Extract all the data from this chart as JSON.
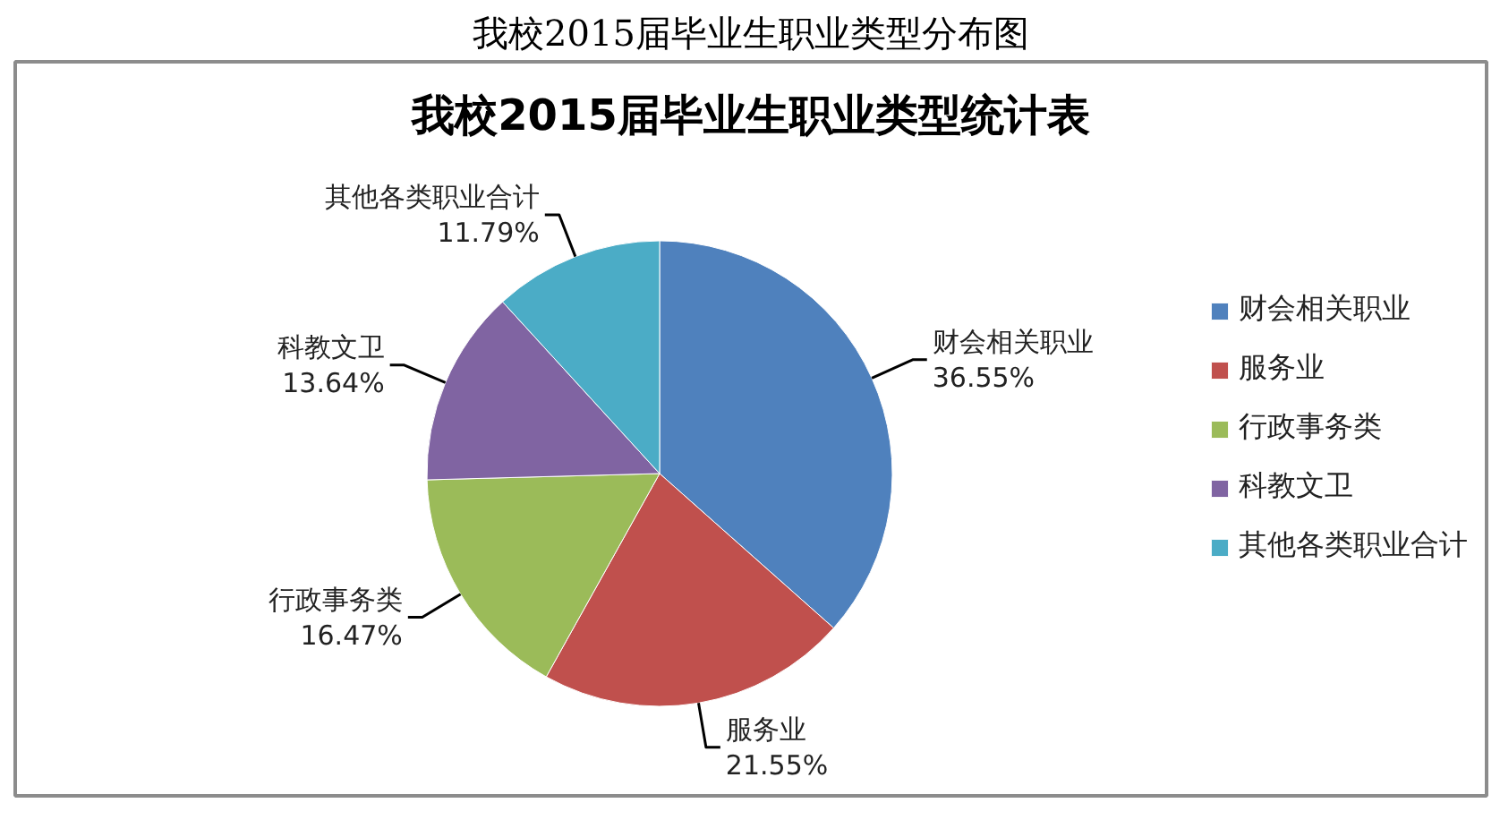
{
  "chart_data": {
    "type": "pie",
    "title": "我校2015届毕业生职业类型分布图",
    "subtitle": "我校2015届毕业生职业类型统计表",
    "categories": [
      "财会相关职业",
      "服务业",
      "行政事务类",
      "科教文卫",
      "其他各类职业合计"
    ],
    "values": [
      36.55,
      21.55,
      16.47,
      13.64,
      11.79
    ],
    "colors": [
      "#4f81bd",
      "#c0504d",
      "#9bbb59",
      "#8064a2",
      "#4bacc6"
    ],
    "value_labels": [
      "36.55%",
      "21.55%",
      "16.47%",
      "13.64%",
      "11.79%"
    ],
    "legend": "right"
  }
}
